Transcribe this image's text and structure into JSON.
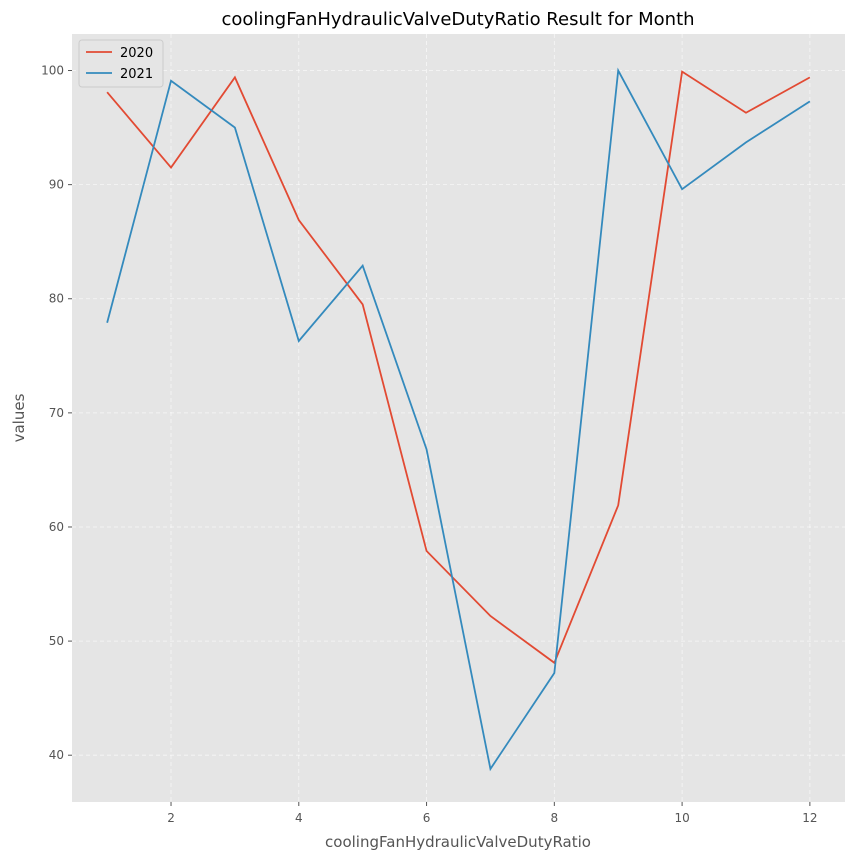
{
  "chart_data": {
    "type": "line",
    "title": "coolingFanHydraulicValveDutyRatio Result for Month",
    "xlabel": "coolingFanHydraulicValveDutyRatio",
    "ylabel": "values",
    "x": [
      1,
      2,
      3,
      4,
      5,
      6,
      7,
      8,
      9,
      10,
      11,
      12
    ],
    "xlim": [
      0.45,
      12.55
    ],
    "ylim": [
      35.9,
      103.2
    ],
    "xticks": [
      2,
      4,
      6,
      8,
      10,
      12
    ],
    "yticks": [
      40,
      50,
      60,
      70,
      80,
      90,
      100
    ],
    "grid": true,
    "legend_position": "top-left",
    "series": [
      {
        "name": "2020",
        "color": "#E24A33",
        "values": [
          98.1,
          91.5,
          99.4,
          86.9,
          79.5,
          57.9,
          52.2,
          48.1,
          61.9,
          99.9,
          96.3,
          99.4
        ]
      },
      {
        "name": "2021",
        "color": "#348ABD",
        "values": [
          77.9,
          99.1,
          95.0,
          76.3,
          82.9,
          66.8,
          38.8,
          47.2,
          100.0,
          89.6,
          93.7,
          97.3
        ]
      }
    ]
  }
}
